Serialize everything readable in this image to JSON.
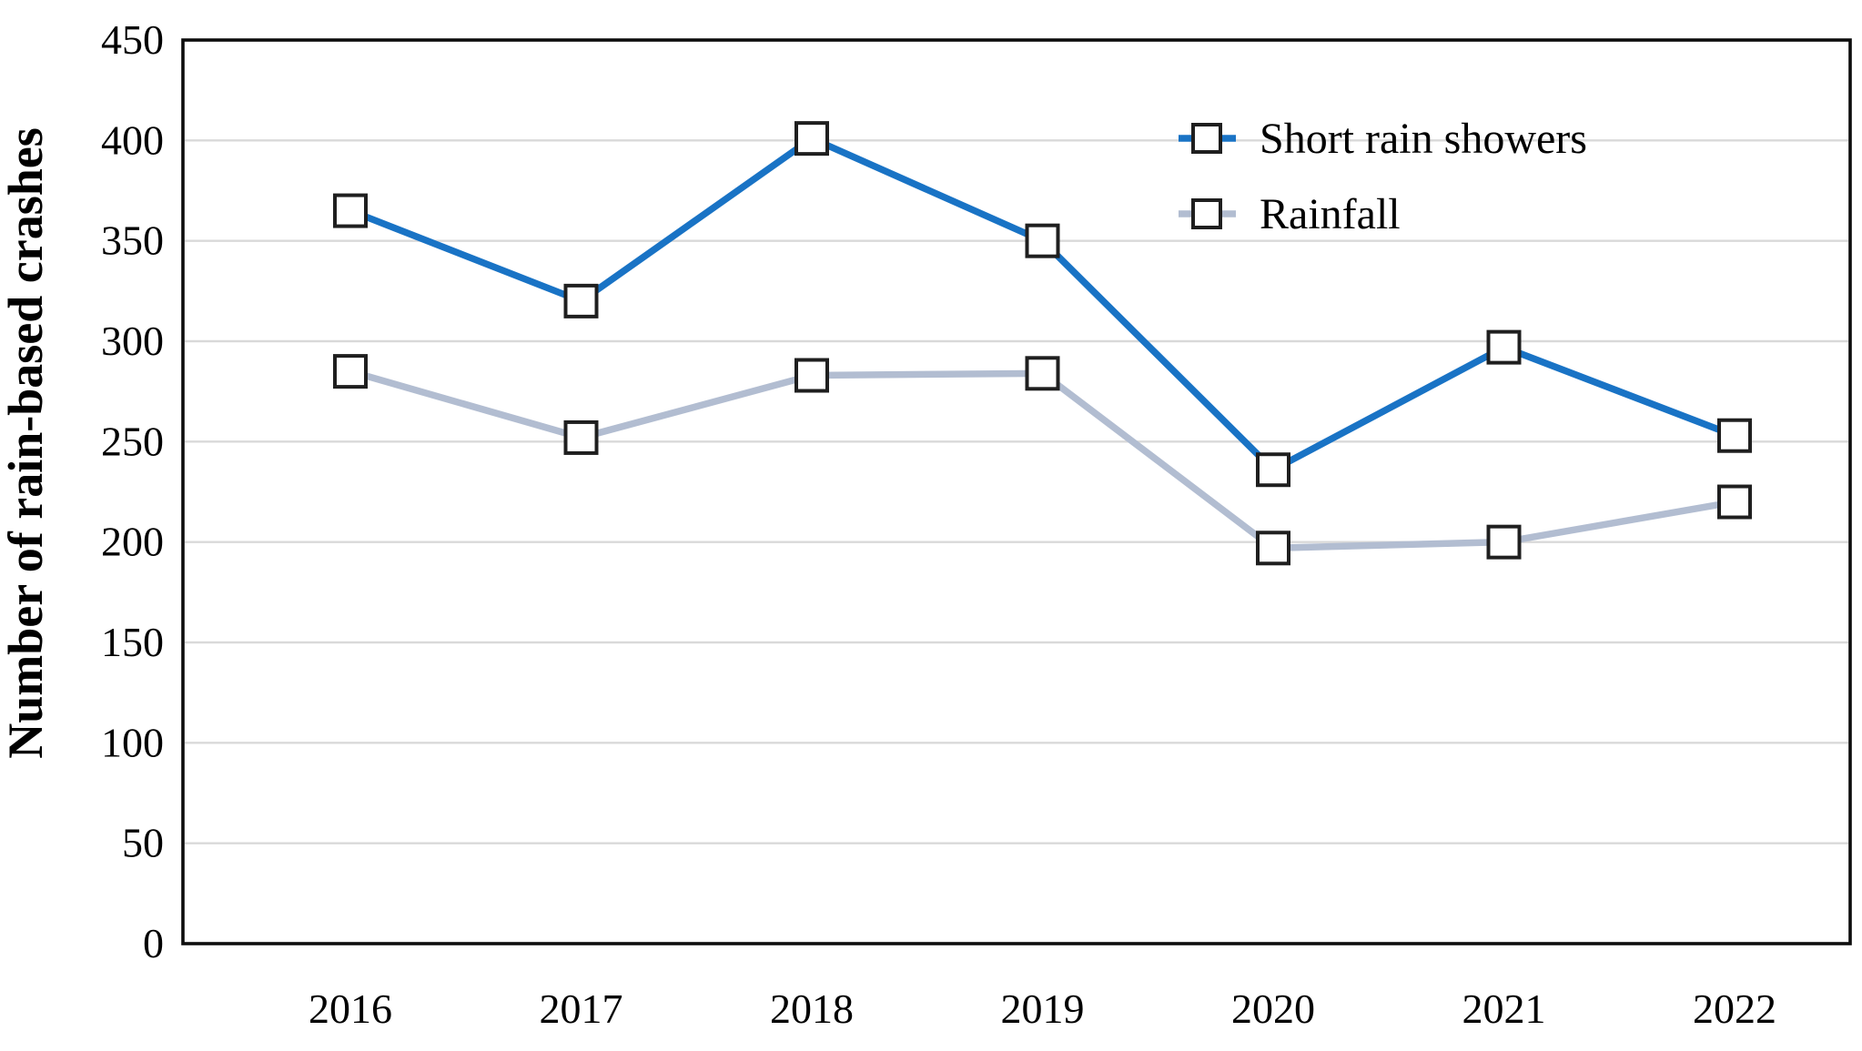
{
  "chart_data": {
    "type": "line",
    "title": "",
    "xlabel": "",
    "ylabel": "Number of rain-based crashes",
    "categories": [
      "2016",
      "2017",
      "2018",
      "2019",
      "2020",
      "2021",
      "2022"
    ],
    "series": [
      {
        "name": "Short rain showers",
        "color": "#1973C5",
        "marker": "open-square",
        "values": [
          365,
          320,
          401,
          350,
          236,
          297,
          253
        ]
      },
      {
        "name": "Rainfall",
        "color": "#B2BDD1",
        "marker": "open-square",
        "values": [
          285,
          252,
          283,
          284,
          197,
          200,
          220
        ]
      }
    ],
    "ylim": [
      0,
      450
    ],
    "yticks": [
      0,
      50,
      100,
      150,
      200,
      250,
      300,
      350,
      400,
      450
    ],
    "grid": true,
    "legend_position": "top-right",
    "legend_labels": [
      "Short rain showers",
      "Rainfall"
    ],
    "colors": {
      "gridline": "#D9D9D9",
      "plot_border": "#0D0D0D",
      "marker_fill": "#FFFFFF",
      "marker_stroke": "#1F1F1F",
      "text": "#000000"
    }
  }
}
